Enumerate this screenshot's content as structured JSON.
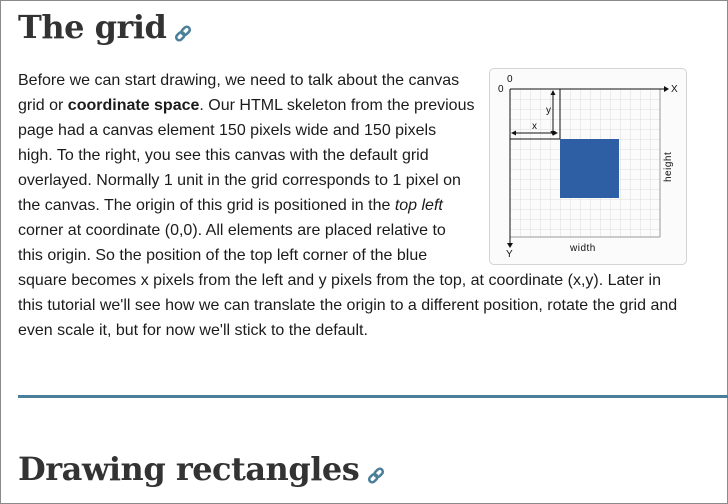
{
  "section_grid": {
    "heading": "The grid",
    "paragraph": {
      "part1": "Before we can start drawing, we need to talk about the canvas grid or ",
      "bold": "coordinate space",
      "part2": ". Our HTML skeleton from the previous page had a canvas element 150 pixels wide and 150 pixels high. To the right, you see this canvas with the default grid overlayed. Normally 1 unit in the grid corresponds to 1 pixel on the canvas. The origin of this grid is positioned in the ",
      "italic": "top left",
      "part3": " corner at coordinate (0,0). All elements are placed relative to this origin. So the position of the top left corner of the blue square becomes x pixels from the left and y pixels from the top, at coordinate (x,y). Later in this tutorial we'll see how we can translate the origin to a different position, rotate the grid and even scale it, but for now we'll stick to the default."
    },
    "figure": {
      "label_origin": "0",
      "label_origin_top": "0",
      "label_x_axis": "X",
      "label_y_axis": "Y",
      "label_x": "x",
      "label_y": "y",
      "label_width": "width",
      "label_height": "height",
      "square_color": "#2e5fa4"
    }
  },
  "section_rectangles": {
    "heading": "Drawing rectangles"
  },
  "colors": {
    "divider": "#4b7f99",
    "link_icon": "#4b7f99",
    "heading": "#333333"
  },
  "icons": [
    "link-icon"
  ]
}
